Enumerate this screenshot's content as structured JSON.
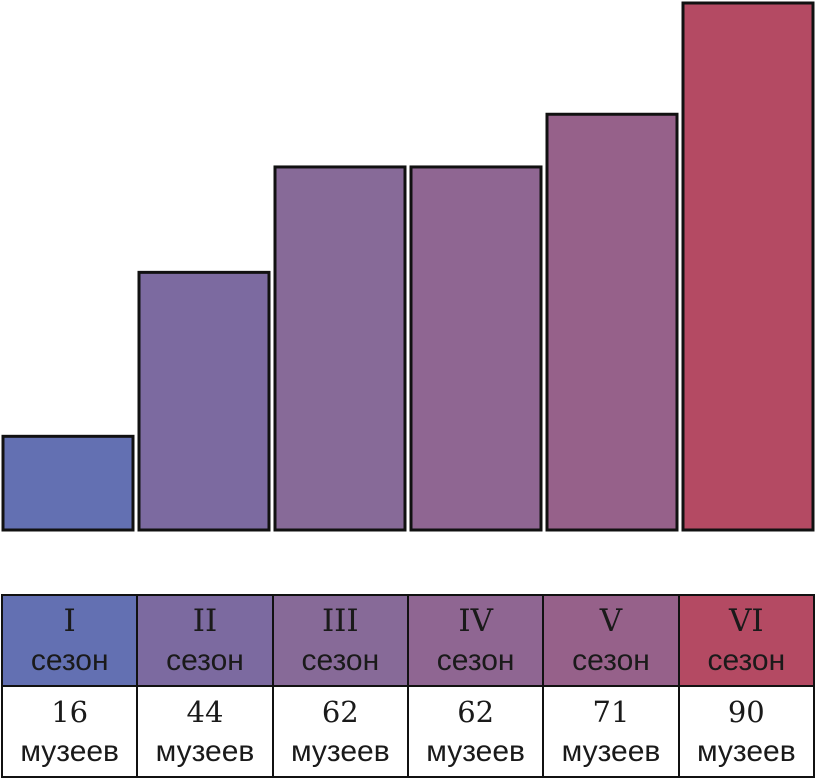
{
  "chart_data": {
    "type": "bar",
    "categories": [
      "I сезон",
      "II сезон",
      "III сезон",
      "IV сезон",
      "V сезон",
      "VI сезон"
    ],
    "values": [
      16,
      44,
      62,
      62,
      71,
      90
    ],
    "ylim": [
      0,
      90
    ],
    "xlabel": "",
    "ylabel": "",
    "title": "",
    "grid": false,
    "colors": [
      "#6370b2",
      "#7c6aa0",
      "#876a98",
      "#8f6692",
      "#96618a",
      "#b44a63"
    ]
  },
  "seasons": [
    {
      "roman": "I",
      "word": "сезон",
      "count": "16",
      "unit": "музеев"
    },
    {
      "roman": "II",
      "word": "сезон",
      "count": "44",
      "unit": "музеев"
    },
    {
      "roman": "III",
      "word": "сезон",
      "count": "62",
      "unit": "музеев"
    },
    {
      "roman": "IV",
      "word": "сезон",
      "count": "62",
      "unit": "музеев"
    },
    {
      "roman": "V",
      "word": "сезон",
      "count": "71",
      "unit": "музеев"
    },
    {
      "roman": "VI",
      "word": "сезон",
      "count": "90",
      "unit": "музеев"
    }
  ]
}
